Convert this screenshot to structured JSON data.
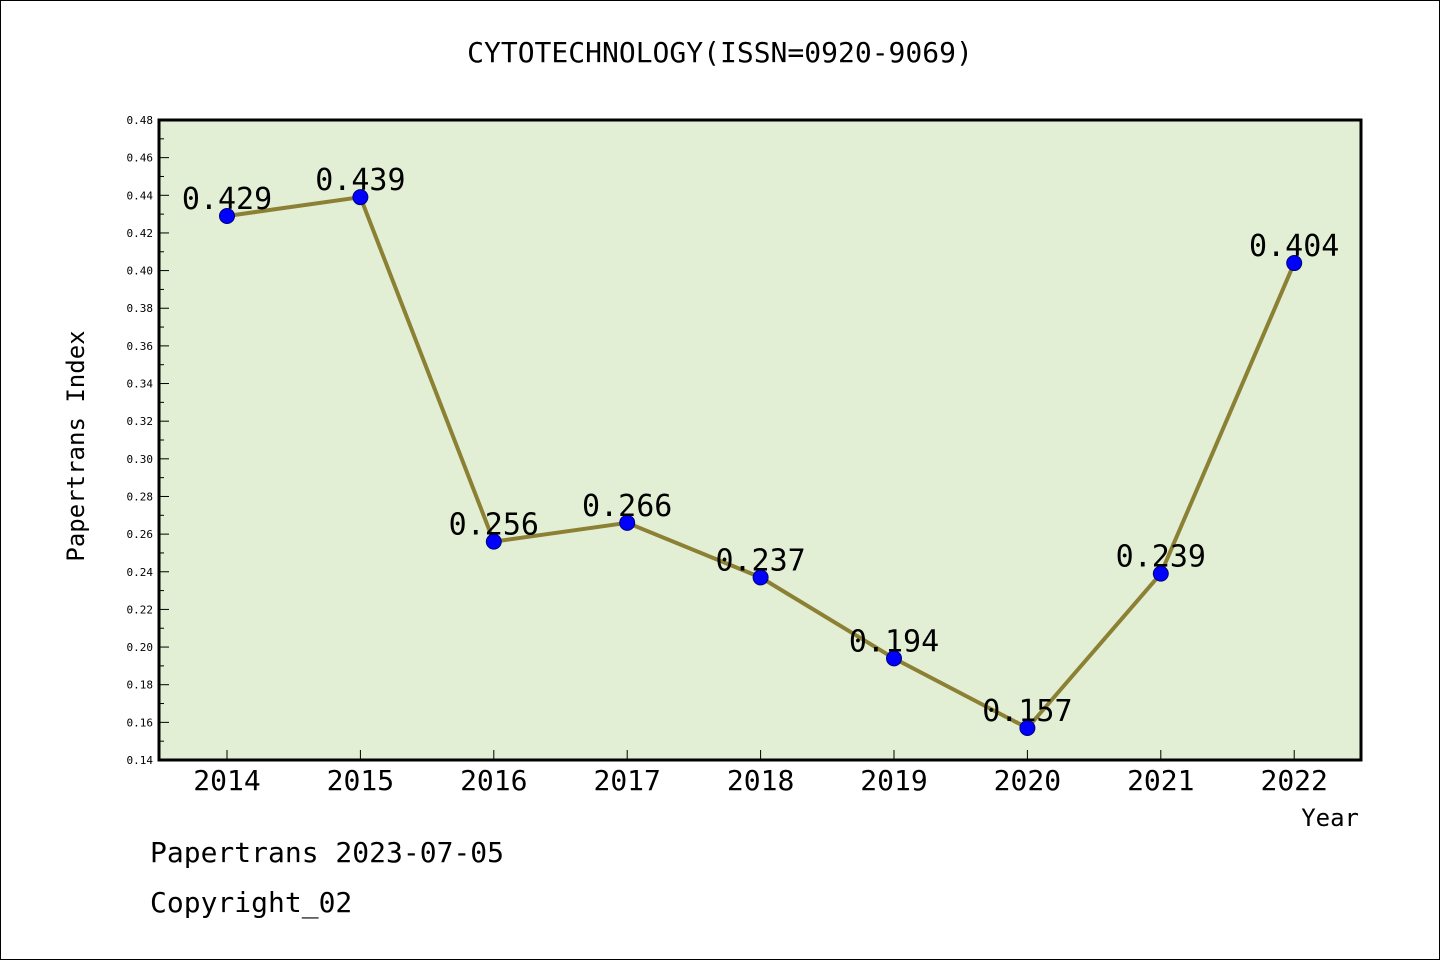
{
  "page": {
    "title": "CYTOTECHNOLOGY(ISSN=0920-9069)",
    "footer_line1": "Papertrans 2023-07-05",
    "footer_line2": "Copyright_02"
  },
  "chart_data": {
    "type": "line",
    "title": "CYTOTECHNOLOGY(ISSN=0920-9069)",
    "xlabel": "Year",
    "ylabel": "Papertrans Index",
    "categories": [
      "2014",
      "2015",
      "2016",
      "2017",
      "2018",
      "2019",
      "2020",
      "2021",
      "2022"
    ],
    "values": [
      0.429,
      0.439,
      0.256,
      0.266,
      0.237,
      0.194,
      0.157,
      0.239,
      0.404
    ],
    "data_labels": [
      "0.429",
      "0.439",
      "0.256",
      "0.266",
      "0.237",
      "0.194",
      "0.157",
      "0.239",
      "0.404"
    ],
    "ylim": [
      0.14,
      0.48
    ],
    "yticks": [
      "0.14",
      "0.16",
      "0.18",
      "0.20",
      "0.22",
      "0.24",
      "0.26",
      "0.28",
      "0.30",
      "0.32",
      "0.34",
      "0.36",
      "0.38",
      "0.40",
      "0.42",
      "0.44",
      "0.46",
      "0.48"
    ],
    "grid": false,
    "colors": {
      "plot_background": "#e2efd5",
      "line": "#8b8033",
      "marker": "#0000ff"
    }
  }
}
